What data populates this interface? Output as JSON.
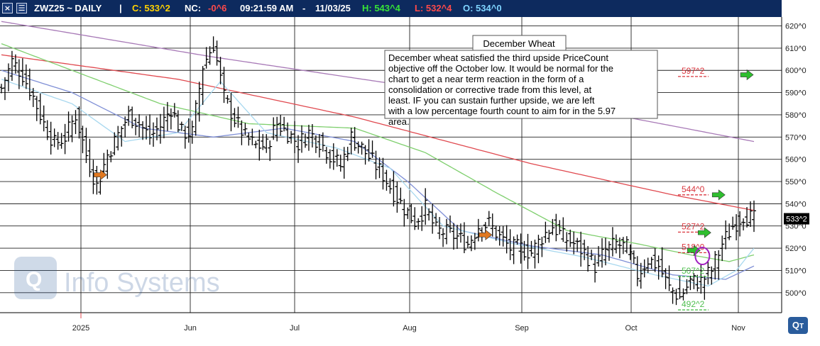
{
  "header": {
    "symbol": "ZWZ25 ~ DAILY",
    "separator": "|",
    "close": "C: 533^2",
    "nc_label": "NC:",
    "nc_value": "-0^6",
    "time": "09:21:59 AM",
    "dash": "-",
    "date": "11/03/25",
    "high": "H: 543^4",
    "low": "L: 532^4",
    "open": "O: 534^0",
    "colors": {
      "bar": "#0d2a5e",
      "close": "#ffd200",
      "nc": "#ff4a4a",
      "high": "#37e437",
      "low": "#ff4a4a",
      "open": "#7fd4ff",
      "text": "#ffffff"
    }
  },
  "watermark": {
    "text": "Info Systems",
    "logo": "Qt-logo"
  },
  "chart_data": {
    "type": "ohlc",
    "ylim": [
      491,
      624
    ],
    "y_ticks": [
      500,
      510,
      520,
      530,
      540,
      550,
      560,
      570,
      580,
      590,
      600,
      610,
      620
    ],
    "y_tick_labels": [
      "500^0",
      "510^0",
      "520^0",
      "530^0",
      "540^0",
      "550^0",
      "560^0",
      "570^0",
      "580^0",
      "590^0",
      "600^0",
      "610^0",
      "620^0"
    ],
    "x_labels": [
      {
        "label": "2025",
        "date": "2025-01-02"
      },
      {
        "label": "Jun",
        "date": "2025-06-02"
      },
      {
        "label": "Jul",
        "date": "2025-07-01"
      },
      {
        "label": "Aug",
        "date": "2025-08-01"
      },
      {
        "label": "Sep",
        "date": "2025-09-02"
      },
      {
        "label": "Oct",
        "date": "2025-10-01"
      },
      {
        "label": "Nov",
        "date": "2025-11-03"
      }
    ],
    "grid": true,
    "last_price": "533^2",
    "price_path": [
      [
        0,
        592
      ],
      [
        3,
        604
      ],
      [
        6,
        598
      ],
      [
        9,
        588
      ],
      [
        12,
        576
      ],
      [
        15,
        567
      ],
      [
        18,
        570
      ],
      [
        21,
        580
      ],
      [
        24,
        562
      ],
      [
        27,
        548
      ],
      [
        30,
        562
      ],
      [
        33,
        571
      ],
      [
        36,
        580
      ],
      [
        39,
        576
      ],
      [
        42,
        570
      ],
      [
        45,
        575
      ],
      [
        48,
        583
      ],
      [
        51,
        572
      ],
      [
        54,
        572
      ],
      [
        57,
        602
      ],
      [
        60,
        612
      ],
      [
        63,
        588
      ],
      [
        66,
        578
      ],
      [
        69,
        570
      ],
      [
        72,
        566
      ],
      [
        75,
        566
      ],
      [
        78,
        576
      ],
      [
        81,
        572
      ],
      [
        84,
        567
      ],
      [
        87,
        572
      ],
      [
        90,
        568
      ],
      [
        93,
        562
      ],
      [
        96,
        557
      ],
      [
        99,
        570
      ],
      [
        102,
        565
      ],
      [
        105,
        559
      ],
      [
        108,
        553
      ],
      [
        111,
        545
      ],
      [
        114,
        538
      ],
      [
        117,
        532
      ],
      [
        120,
        538
      ],
      [
        123,
        528
      ],
      [
        126,
        527
      ],
      [
        129,
        525
      ],
      [
        132,
        522
      ],
      [
        135,
        530
      ],
      [
        138,
        531
      ],
      [
        141,
        525
      ],
      [
        144,
        520
      ],
      [
        147,
        520
      ],
      [
        150,
        518
      ],
      [
        153,
        525
      ],
      [
        156,
        530
      ],
      [
        159,
        525
      ],
      [
        162,
        522
      ],
      [
        165,
        518
      ],
      [
        168,
        512
      ],
      [
        171,
        519
      ],
      [
        174,
        522
      ],
      [
        177,
        520
      ],
      [
        180,
        508
      ],
      [
        183,
        515
      ],
      [
        186,
        512
      ],
      [
        189,
        502
      ],
      [
        192,
        498
      ],
      [
        195,
        505
      ],
      [
        198,
        505
      ],
      [
        201,
        510
      ],
      [
        204,
        522
      ],
      [
        207,
        530
      ],
      [
        210,
        535
      ],
      [
        213,
        533
      ]
    ],
    "moving_averages": [
      {
        "color": "#a87ab7",
        "path": [
          [
            0,
            622
          ],
          [
            60,
            606
          ],
          [
            115,
            593
          ],
          [
            160,
            584
          ],
          [
            190,
            575
          ],
          [
            213,
            568
          ]
        ]
      },
      {
        "color": "#e0494f",
        "path": [
          [
            0,
            607
          ],
          [
            50,
            596
          ],
          [
            100,
            579
          ],
          [
            150,
            558
          ],
          [
            190,
            544
          ],
          [
            213,
            537
          ]
        ]
      },
      {
        "color": "#7fcf6e",
        "path": [
          [
            0,
            612
          ],
          [
            20,
            600
          ],
          [
            45,
            585
          ],
          [
            70,
            576
          ],
          [
            100,
            574
          ],
          [
            120,
            563
          ],
          [
            140,
            545
          ],
          [
            160,
            528
          ],
          [
            180,
            522
          ],
          [
            195,
            517
          ],
          [
            206,
            514
          ],
          [
            213,
            517
          ]
        ]
      },
      {
        "color": "#7f8fd6",
        "path": [
          [
            0,
            600
          ],
          [
            20,
            590
          ],
          [
            40,
            574
          ],
          [
            60,
            570
          ],
          [
            80,
            574
          ],
          [
            100,
            568
          ],
          [
            115,
            550
          ],
          [
            130,
            528
          ],
          [
            150,
            521
          ],
          [
            170,
            517
          ],
          [
            190,
            508
          ],
          [
            205,
            506
          ],
          [
            213,
            512
          ]
        ]
      },
      {
        "color": "#a8d8ef",
        "path": [
          [
            0,
            596
          ],
          [
            20,
            585
          ],
          [
            35,
            568
          ],
          [
            50,
            572
          ],
          [
            62,
            595
          ],
          [
            75,
            572
          ],
          [
            95,
            565
          ],
          [
            110,
            556
          ],
          [
            125,
            530
          ],
          [
            145,
            522
          ],
          [
            165,
            516
          ],
          [
            185,
            508
          ],
          [
            200,
            503
          ],
          [
            208,
            510
          ],
          [
            213,
            520
          ]
        ]
      }
    ],
    "callout": {
      "title": "December Wheat",
      "text": "December wheat satisfied the third upside PriceCount objective off the October low.  It would be normal for the chart to get a near term reaction in the form of a consolidation or corrective trade from this level, at least.  IF you can sustain further upside, we are left with a low percentage fourth count to aim for in the 5.97 area."
    },
    "annotations": [
      {
        "label": "597^2",
        "color": "#d9363e",
        "value": 597.25
      },
      {
        "label": "544^0",
        "color": "#d9363e",
        "value": 544
      },
      {
        "label": "527^2",
        "color": "#d9363e",
        "value": 527.25
      },
      {
        "label": "518^0",
        "color": "#d9363e",
        "value": 518
      },
      {
        "label": "507^2",
        "color": "#4fbf4f",
        "value": 507.25
      },
      {
        "label": "492^2",
        "color": "#4fbf4f",
        "value": 492.25
      }
    ],
    "arrows": [
      {
        "color": "#e07820",
        "x": 28,
        "value": 553,
        "name": "orange-arrow-1"
      },
      {
        "color": "#e07820",
        "x": 137,
        "value": 526,
        "name": "orange-arrow-2"
      },
      {
        "color": "#2fbf2f",
        "x": 203,
        "value": 544,
        "name": "green-arrow-1"
      },
      {
        "color": "#2fbf2f",
        "x": 199,
        "value": 527,
        "name": "green-arrow-2"
      },
      {
        "color": "#2fbf2f",
        "x": 196,
        "value": 519,
        "name": "green-arrow-3"
      },
      {
        "color": "#2fbf2f",
        "x": 211,
        "value": 598,
        "name": "green-arrow-4"
      }
    ],
    "circle": {
      "x": 198,
      "value": 516.5,
      "color": "#a020c0"
    }
  }
}
